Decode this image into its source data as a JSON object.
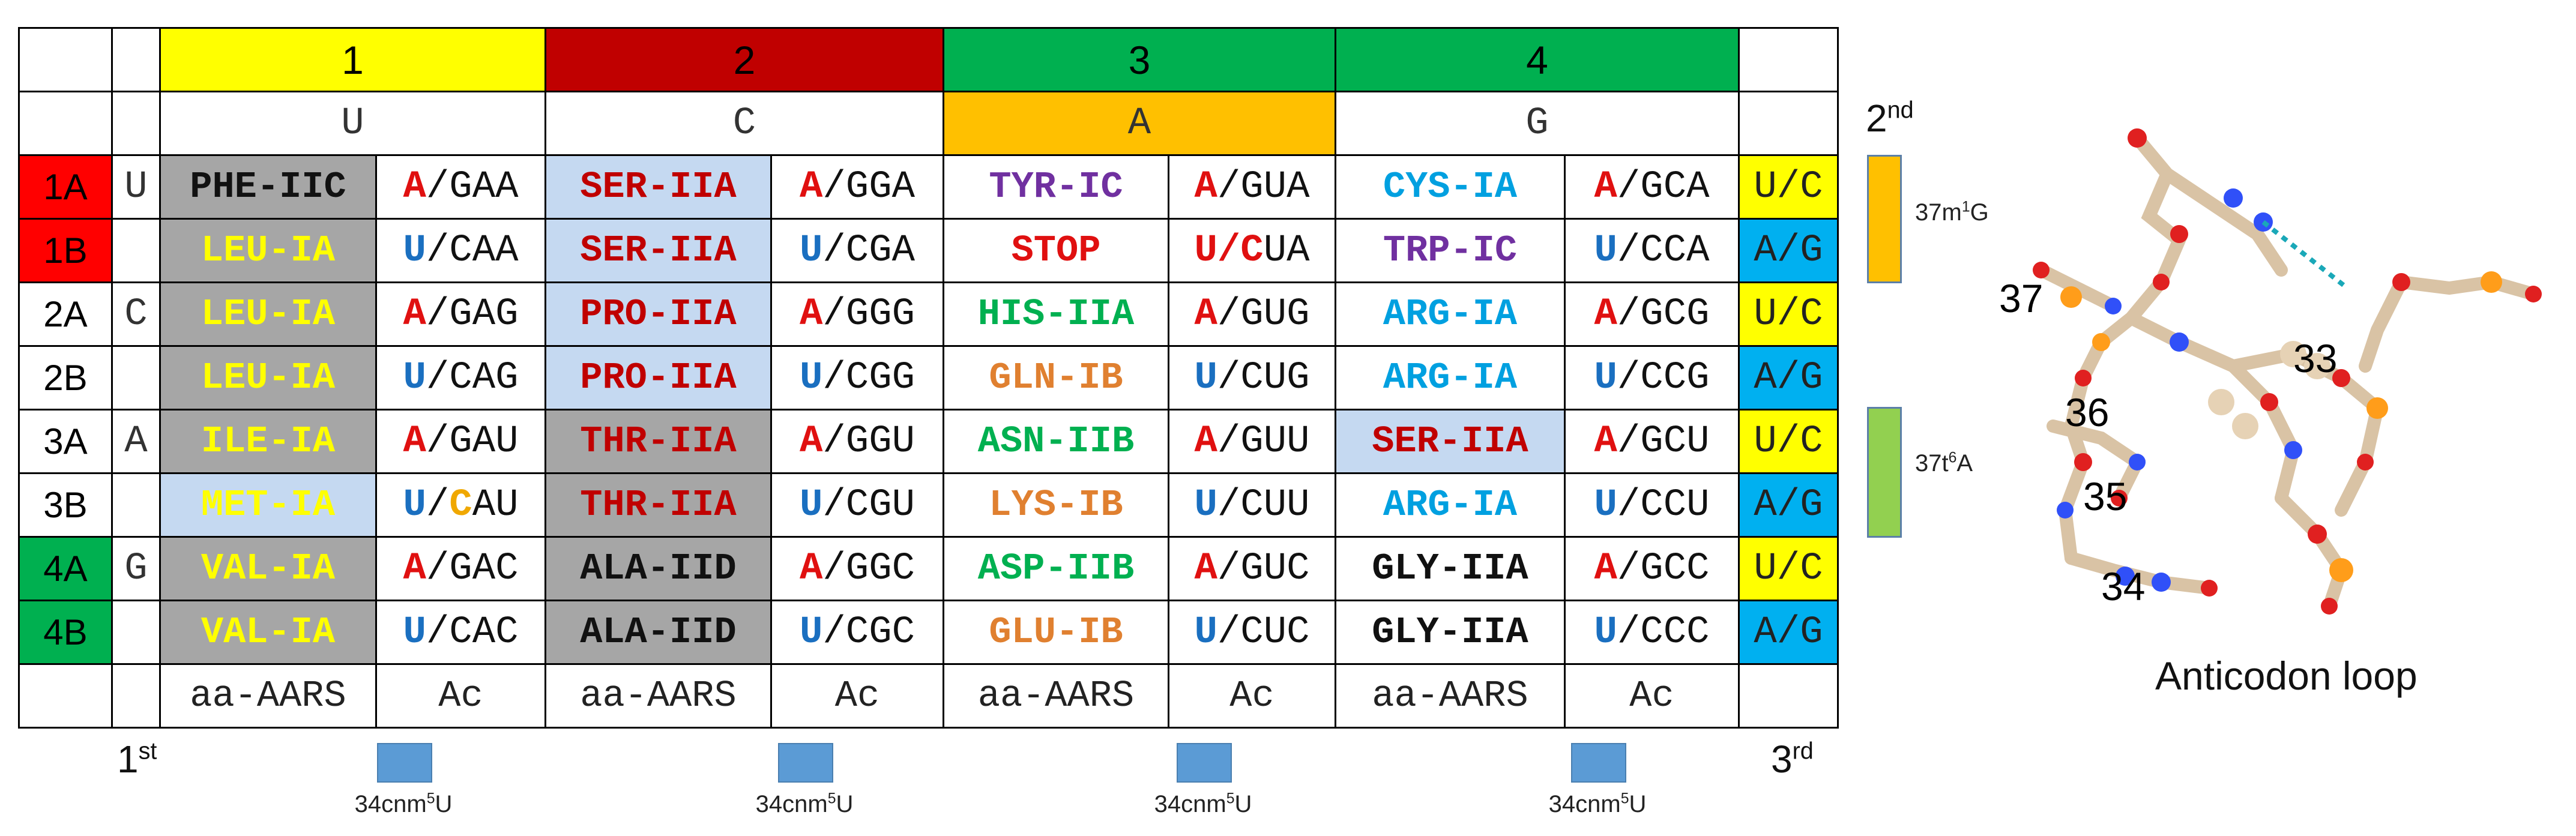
{
  "colors": {
    "header1": "#ffff00",
    "header2": "#c00000",
    "header3": "#00b050",
    "header4": "#00b050",
    "headerA": "#ffc000",
    "typeIIA": "#c5d9f1",
    "typeIIC": "#a6a6a6",
    "box1": "#ff0000",
    "box4": "#00b050",
    "thirdUC": "#ffff00",
    "thirdAG": "#00b0f0",
    "cnm5U": "#5b9bd5",
    "m1G": "#ffc000",
    "t6A": "#92d050"
  },
  "header": {
    "numbers": [
      "1",
      "2",
      "3",
      "4"
    ],
    "second_letters": [
      "U",
      "C",
      "A",
      "G"
    ]
  },
  "rows": [
    {
      "label": "1A",
      "first": "U",
      "third": "U/C",
      "cells": [
        {
          "aa": "PHE-IIC",
          "b": "A",
          "rest": "/GAA"
        },
        {
          "aa": "SER-IIA",
          "b": "A",
          "rest": "/GGA"
        },
        {
          "aa": "TYR-IC",
          "b": "A",
          "rest": "/GUA"
        },
        {
          "aa": "CYS-IA",
          "b": "A",
          "rest": "/GCA"
        }
      ]
    },
    {
      "label": "1B",
      "first": "",
      "third": "A/G",
      "cells": [
        {
          "aa": "LEU-IA",
          "b": "U",
          "rest": "/CAA"
        },
        {
          "aa": "SER-IIA",
          "b": "U",
          "rest": "/CGA"
        },
        {
          "aa": "STOP",
          "b": "U/C",
          "rest": "UA"
        },
        {
          "aa": "TRP-IC",
          "b": "U",
          "rest": "/CCA"
        }
      ]
    },
    {
      "label": "2A",
      "first": "C",
      "third": "U/C",
      "cells": [
        {
          "aa": "LEU-IA",
          "b": "A",
          "rest": "/GAG"
        },
        {
          "aa": "PRO-IIA",
          "b": "A",
          "rest": "/GGG"
        },
        {
          "aa": "HIS-IIA",
          "b": "A",
          "rest": "/GUG"
        },
        {
          "aa": "ARG-IA",
          "b": "A",
          "rest": "/GCG"
        }
      ]
    },
    {
      "label": "2B",
      "first": "",
      "third": "A/G",
      "cells": [
        {
          "aa": "LEU-IA",
          "b": "U",
          "rest": "/CAG"
        },
        {
          "aa": "PRO-IIA",
          "b": "U",
          "rest": "/CGG"
        },
        {
          "aa": "GLN-IB",
          "b": "U",
          "rest": "/CUG"
        },
        {
          "aa": "ARG-IA",
          "b": "U",
          "rest": "/CCG"
        }
      ]
    },
    {
      "label": "3A",
      "first": "A",
      "third": "U/C",
      "cells": [
        {
          "aa": "ILE-IA",
          "b": "A",
          "rest": "/GAU"
        },
        {
          "aa": "THR-IIA",
          "b": "A",
          "rest": "/GGU"
        },
        {
          "aa": "ASN-IIB",
          "b": "A",
          "rest": "/GUU"
        },
        {
          "aa": "SER-IIA",
          "b": "A",
          "rest": "/GCU"
        }
      ]
    },
    {
      "label": "3B",
      "first": "",
      "third": "A/G",
      "cells": [
        {
          "aa": "MET-IA",
          "b": "U",
          "rest": "/",
          "b2": "C",
          "rest2": "AU"
        },
        {
          "aa": "THR-IIA",
          "b": "U",
          "rest": "/CGU"
        },
        {
          "aa": "LYS-IB",
          "b": "U",
          "rest": "/CUU"
        },
        {
          "aa": "ARG-IA",
          "b": "U",
          "rest": "/CCU"
        }
      ]
    },
    {
      "label": "4A",
      "first": "G",
      "third": "U/C",
      "cells": [
        {
          "aa": "VAL-IA",
          "b": "A",
          "rest": "/GAC"
        },
        {
          "aa": "ALA-IID",
          "b": "A",
          "rest": "/GGC"
        },
        {
          "aa": "ASP-IIB",
          "b": "A",
          "rest": "/GUC"
        },
        {
          "aa": "GLY-IIA",
          "b": "A",
          "rest": "/GCC"
        }
      ]
    },
    {
      "label": "4B",
      "first": "",
      "third": "A/G",
      "cells": [
        {
          "aa": "VAL-IA",
          "b": "U",
          "rest": "/CAC"
        },
        {
          "aa": "ALA-IID",
          "b": "U",
          "rest": "/CGC"
        },
        {
          "aa": "GLU-IB",
          "b": "U",
          "rest": "/CUC"
        },
        {
          "aa": "GLY-IIA",
          "b": "U",
          "rest": "/CCC"
        }
      ]
    }
  ],
  "footer": {
    "aa": "aa-AARS",
    "ac": "Ac"
  },
  "labels": {
    "first": "1",
    "first_sup": "st",
    "second": "2",
    "second_sup": "nd",
    "third": "3",
    "third_sup": "rd",
    "cnm5U": {
      "pre": "34cnm",
      "sup": "5",
      "post": "U"
    },
    "m1G": {
      "pre": "37m",
      "sup": "1",
      "post": "G"
    },
    "t6A": {
      "pre": "37t",
      "sup": "6",
      "post": "A"
    }
  },
  "anticodon_loop": {
    "caption": "Anticodon loop",
    "residues": [
      "37",
      "33",
      "36",
      "35",
      "34"
    ]
  }
}
